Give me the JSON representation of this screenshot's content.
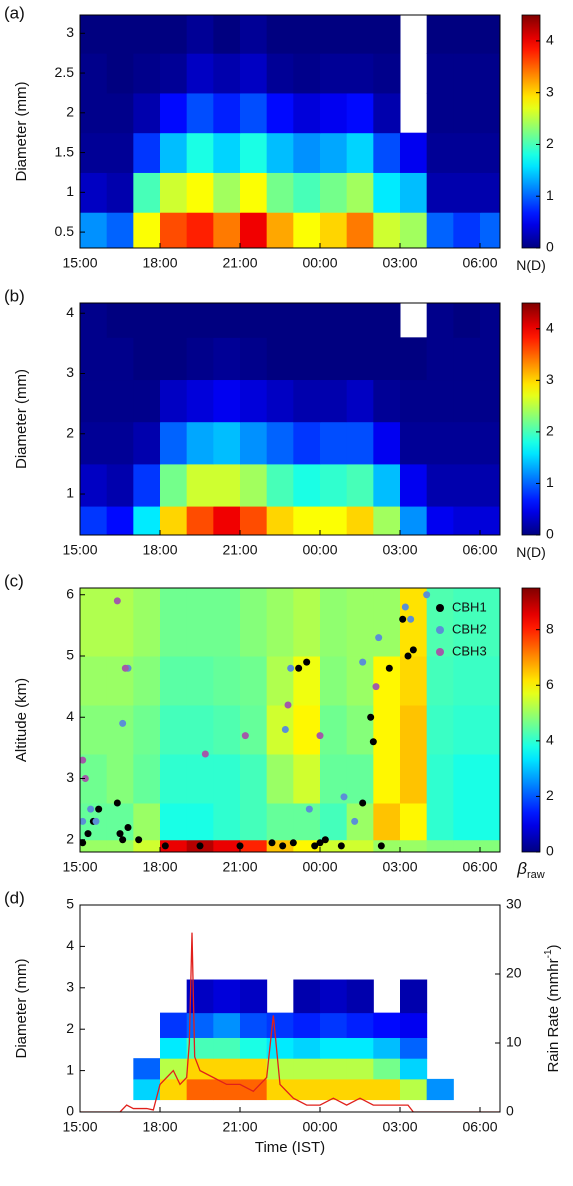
{
  "chart_data": [
    {
      "type": "heatmap",
      "panel_label": "(a)",
      "ylabel": "Diameter (mm)",
      "colormap": "jet",
      "xlim": [
        0,
        15.75
      ],
      "xticks": [
        {
          "value": 0,
          "label": "15:00"
        },
        {
          "value": 3,
          "label": "18:00"
        },
        {
          "value": 6,
          "label": "21:00"
        },
        {
          "value": 9,
          "label": "00:00"
        },
        {
          "value": 12,
          "label": "03:00"
        },
        {
          "value": 15,
          "label": "06:00"
        }
      ],
      "ylim": [
        0.3,
        3.23
      ],
      "yticks": [
        0.5,
        1,
        1.5,
        2,
        2.5,
        3
      ],
      "xbins": [
        0,
        1,
        2,
        3,
        4,
        5,
        6,
        7,
        8,
        9,
        10,
        11,
        12,
        13,
        14,
        15,
        15.75
      ],
      "ybins": [
        0.3,
        0.75,
        1.25,
        1.75,
        2.25,
        2.75,
        3.23
      ],
      "z": [
        [
          1.2,
          1.0,
          2.8,
          3.6,
          3.8,
          3.4,
          4.0,
          3.2,
          2.8,
          3.0,
          3.4,
          2.6,
          2.4,
          1.0,
          0.8,
          1.0
        ],
        [
          0.3,
          0.2,
          2.0,
          2.6,
          2.8,
          2.4,
          2.8,
          2.2,
          2.0,
          2.2,
          2.4,
          1.6,
          1.4,
          0.2,
          0.2,
          0.2
        ],
        [
          0.1,
          0.1,
          0.8,
          1.4,
          1.8,
          1.5,
          1.8,
          1.4,
          1.2,
          1.3,
          1.5,
          0.9,
          0.5,
          0.1,
          0.1,
          0.1
        ],
        [
          0.05,
          0.05,
          0.2,
          0.6,
          0.9,
          0.7,
          0.9,
          0.6,
          0.4,
          0.5,
          0.6,
          0.2,
          null,
          0.05,
          0.05,
          0.05
        ],
        [
          0.05,
          0,
          0.05,
          0.1,
          0.3,
          0.2,
          0.3,
          0.1,
          0.05,
          0.1,
          0.1,
          0.05,
          null,
          0.05,
          0.05,
          0.05
        ],
        [
          0,
          0,
          0,
          0,
          0.1,
          0,
          0.1,
          0,
          0,
          0,
          0,
          0,
          null,
          0,
          0,
          0
        ]
      ],
      "zlim": [
        0,
        4.5
      ],
      "colorbar_ticks": [
        0,
        1,
        2,
        3,
        4
      ],
      "colorbar_label": "N(D)"
    },
    {
      "type": "heatmap",
      "panel_label": "(b)",
      "ylabel": "Diameter (mm)",
      "colormap": "jet",
      "xlim": [
        0,
        15.75
      ],
      "xticks": [
        {
          "value": 0,
          "label": "15:00"
        },
        {
          "value": 3,
          "label": "18:00"
        },
        {
          "value": 6,
          "label": "21:00"
        },
        {
          "value": 9,
          "label": "00:00"
        },
        {
          "value": 12,
          "label": "03:00"
        },
        {
          "value": 15,
          "label": "06:00"
        }
      ],
      "ylim": [
        0.32,
        4.17
      ],
      "yticks": [
        1,
        2,
        3,
        4
      ],
      "xbins": [
        0,
        1,
        2,
        3,
        4,
        5,
        6,
        7,
        8,
        9,
        10,
        11,
        12,
        13,
        14,
        15,
        15.75
      ],
      "ybins": [
        0.32,
        0.8,
        1.5,
        2.2,
        2.9,
        3.6,
        4.17
      ],
      "z": [
        [
          0.8,
          0.6,
          1.6,
          3.0,
          3.6,
          4.0,
          3.6,
          3.0,
          2.8,
          2.8,
          3.0,
          2.4,
          1.2,
          0.5,
          0.4,
          0.4
        ],
        [
          0.3,
          0.2,
          0.8,
          2.2,
          2.6,
          2.6,
          2.4,
          2.0,
          1.8,
          1.9,
          2.0,
          1.4,
          0.5,
          0.2,
          0.2,
          0.2
        ],
        [
          0.1,
          0.1,
          0.2,
          1.0,
          1.3,
          1.4,
          1.2,
          1.0,
          0.8,
          0.9,
          0.9,
          0.5,
          0.1,
          0.1,
          0.1,
          0.1
        ],
        [
          0.05,
          0.05,
          0.05,
          0.3,
          0.4,
          0.5,
          0.4,
          0.3,
          0.2,
          0.2,
          0.3,
          0.1,
          0.05,
          0.05,
          0.05,
          0.05
        ],
        [
          0.05,
          0.05,
          0,
          0,
          0.05,
          0.1,
          0.05,
          0,
          0,
          0,
          0,
          0,
          0,
          0.05,
          0.05,
          0.05
        ],
        [
          0.05,
          0,
          0,
          0,
          0,
          0,
          0,
          0,
          0,
          0,
          0,
          0,
          null,
          0.05,
          0,
          0.05
        ]
      ],
      "zlim": [
        0,
        4.5
      ],
      "colorbar_ticks": [
        0,
        1,
        2,
        3,
        4
      ],
      "colorbar_label": "N(D)"
    },
    {
      "type": "heatmap",
      "panel_label": "(c)",
      "ylabel": "Altitude (km)",
      "colormap": "jet",
      "xlim": [
        0,
        15.75
      ],
      "xticks": [
        {
          "value": 0,
          "label": "15:00"
        },
        {
          "value": 3,
          "label": "18:00"
        },
        {
          "value": 6,
          "label": "21:00"
        },
        {
          "value": 9,
          "label": "00:00"
        },
        {
          "value": 12,
          "label": "03:00"
        },
        {
          "value": 15,
          "label": "06:00"
        }
      ],
      "ylim": [
        1.8,
        6.11
      ],
      "yticks": [
        2,
        3,
        4,
        5,
        6
      ],
      "xbins": [
        0,
        1,
        2,
        3,
        4,
        5,
        6,
        7,
        8,
        9,
        10,
        11,
        12,
        13,
        14,
        15,
        15.75
      ],
      "ybins": [
        1.8,
        2.0,
        2.6,
        3.4,
        4.2,
        5.0,
        6.11
      ],
      "z": [
        [
          5,
          5,
          5.5,
          8.5,
          9,
          8.5,
          8,
          6.5,
          6,
          5.5,
          5.5,
          5,
          5,
          4.8,
          4.8,
          4.8
        ],
        [
          4.5,
          4.5,
          5,
          3.8,
          3.8,
          4,
          4.2,
          4.5,
          4.5,
          4.2,
          5,
          6.5,
          6,
          4,
          3.8,
          3.8
        ],
        [
          4.6,
          4.8,
          4.5,
          4,
          4,
          4,
          4.2,
          5,
          5.5,
          4.5,
          4.5,
          6,
          6.5,
          4,
          3.8,
          3.8
        ],
        [
          4.8,
          4.8,
          4.6,
          4.2,
          4.2,
          4.3,
          4.5,
          5.5,
          6,
          4.6,
          4.8,
          6,
          6.5,
          4.1,
          4,
          4
        ],
        [
          5,
          5,
          4.8,
          4.4,
          4.4,
          4.5,
          4.6,
          5.2,
          5.8,
          4.8,
          5,
          6,
          6.3,
          4.2,
          4.1,
          4.1
        ],
        [
          5.2,
          5.2,
          5,
          4.6,
          4.6,
          4.6,
          4.8,
          5,
          5.2,
          4.9,
          5,
          5,
          6.2,
          4.3,
          4.2,
          4.2
        ]
      ],
      "zlim": [
        0,
        9.5
      ],
      "colorbar_ticks": [
        0,
        2,
        4,
        6,
        8
      ],
      "colorbar_label": "β",
      "colorbar_label_sub": "raw",
      "legend": "upper right",
      "series": [
        {
          "type": "scatter",
          "name": "CBH1",
          "color": "#000000",
          "x": [
            0.1,
            0.3,
            0.5,
            0.7,
            1.4,
            1.5,
            1.6,
            1.8,
            2.2,
            3.2,
            4.5,
            6,
            7.2,
            7.6,
            8.0,
            8.2,
            8.5,
            8.8,
            9.0,
            9.2,
            9.8,
            10.6,
            10.9,
            11.0,
            11.3,
            11.6,
            12.1,
            12.3,
            12.5
          ],
          "values": [
            1.95,
            2.1,
            2.3,
            2.5,
            2.6,
            2.1,
            2.0,
            2.2,
            2.0,
            1.9,
            1.9,
            1.9,
            1.95,
            1.9,
            1.95,
            4.8,
            4.9,
            1.9,
            1.95,
            2.0,
            1.9,
            2.6,
            4.0,
            3.6,
            1.9,
            4.8,
            5.6,
            5.0,
            5.1
          ]
        },
        {
          "type": "scatter",
          "name": "CBH2",
          "color": "#5b8fd6",
          "x": [
            0.1,
            0.4,
            0.6,
            1.6,
            1.8,
            7.7,
            7.9,
            8.6,
            9.9,
            10.3,
            10.6,
            11.2,
            12.2,
            12.4,
            13.0
          ],
          "values": [
            2.3,
            2.5,
            2.3,
            3.9,
            4.8,
            3.8,
            4.8,
            2.5,
            2.7,
            2.3,
            4.9,
            5.3,
            5.8,
            5.6,
            6.0
          ]
        },
        {
          "type": "scatter",
          "name": "CBH3",
          "color": "#a25aa8",
          "x": [
            0.1,
            0.2,
            1.4,
            1.7,
            4.7,
            6.2,
            7.8,
            9.0,
            11.1
          ],
          "values": [
            3.3,
            3.0,
            5.9,
            4.8,
            3.4,
            3.7,
            4.2,
            3.7,
            4.5
          ]
        }
      ]
    },
    {
      "type": "heatmap",
      "panel_label": "(d)",
      "ylabel": "Diameter (mm)",
      "xlabel": "Time (IST)",
      "colormap": "jet",
      "y2label": "Rain Rate (mmhr",
      "y2label_sup": "-1",
      "y2label_end": ")",
      "xlim": [
        0,
        15.75
      ],
      "xticks": [
        {
          "value": 0,
          "label": "15:00"
        },
        {
          "value": 3,
          "label": "18:00"
        },
        {
          "value": 6,
          "label": "21:00"
        },
        {
          "value": 9,
          "label": "00:00"
        },
        {
          "value": 12,
          "label": "03:00"
        },
        {
          "value": 15,
          "label": "06:00"
        }
      ],
      "ylim": [
        0,
        5
      ],
      "yticks": [
        0,
        1,
        2,
        3,
        4,
        5
      ],
      "y2lim": [
        0,
        30
      ],
      "y2ticks": [
        0,
        10,
        20,
        30
      ],
      "xbins": [
        0,
        1,
        2,
        3,
        4,
        5,
        6,
        7,
        8,
        9,
        10,
        11,
        12,
        13,
        14,
        15,
        15.75
      ],
      "ybins": [
        0.3,
        0.8,
        1.3,
        1.8,
        2.4,
        3.2
      ],
      "z": [
        [
          null,
          null,
          1.5,
          3.0,
          3.5,
          3.5,
          3.5,
          3.0,
          3.0,
          3.0,
          3.0,
          3.0,
          2.5,
          1.2,
          null,
          null
        ],
        [
          null,
          null,
          1.0,
          2.5,
          3.0,
          3.0,
          3.0,
          2.5,
          2.5,
          2.5,
          2.5,
          2.2,
          1.5,
          null,
          null,
          null
        ],
        [
          null,
          null,
          null,
          1.6,
          2.0,
          2.0,
          1.8,
          1.6,
          1.5,
          1.6,
          1.6,
          1.4,
          1.0,
          null,
          null,
          null
        ],
        [
          null,
          null,
          null,
          0.8,
          1.0,
          1.2,
          0.9,
          0.8,
          0.7,
          0.8,
          0.7,
          0.6,
          0.5,
          null,
          null,
          null
        ],
        [
          null,
          null,
          null,
          null,
          0.3,
          0.4,
          0.3,
          null,
          0.2,
          0.3,
          0.2,
          null,
          0.2,
          null,
          null,
          null
        ]
      ],
      "zlim": [
        0,
        4.5
      ],
      "series": [
        {
          "type": "line",
          "axis": "y2",
          "color": "#e0201b",
          "x": [
            0,
            0.5,
            1,
            1.5,
            1.75,
            2,
            2.5,
            2.75,
            3,
            3.25,
            3.5,
            3.75,
            4,
            4.1,
            4.2,
            4.3,
            4.5,
            5,
            5.5,
            6,
            6.5,
            7,
            7.25,
            7.5,
            8,
            8.5,
            9,
            9.5,
            10,
            10.5,
            11,
            11.5,
            12,
            12.3,
            12.5,
            13,
            14,
            15,
            15.75
          ],
          "values": [
            0,
            0,
            0,
            0,
            1,
            0.5,
            0.5,
            0.3,
            4,
            5,
            6,
            4,
            5,
            10,
            26,
            8,
            6,
            5,
            4,
            4,
            3,
            5,
            14,
            4,
            2,
            1,
            1,
            2,
            1,
            2,
            1,
            1,
            1,
            1,
            0,
            0,
            0,
            0,
            0
          ]
        }
      ]
    }
  ]
}
